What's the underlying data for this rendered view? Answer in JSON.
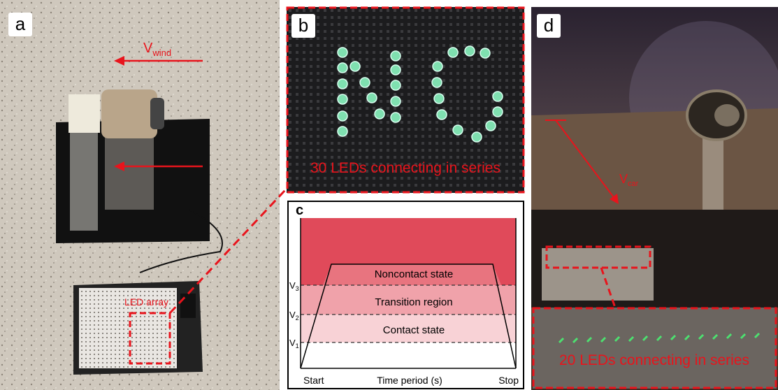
{
  "panel_a": {
    "label": "a",
    "velocity_symbol": "V",
    "velocity_subscript": "wind",
    "led_label": "LED array"
  },
  "panel_b": {
    "label": "b",
    "caption": "30 LEDs connecting in series"
  },
  "panel_c": {
    "label": "c",
    "regions": [
      "Noncontact state",
      "Transition region",
      "Contact state"
    ],
    "levels": [
      {
        "symbol": "V",
        "subscript": "3"
      },
      {
        "symbol": "V",
        "subscript": "2"
      },
      {
        "symbol": "V",
        "subscript": "1"
      }
    ],
    "x_start": "Start",
    "x_axis": "Time period (s)",
    "x_stop": "Stop"
  },
  "panel_d": {
    "label": "d",
    "velocity_symbol": "V",
    "velocity_subscript": "car",
    "caption": "20 LEDs connecting in series"
  }
}
